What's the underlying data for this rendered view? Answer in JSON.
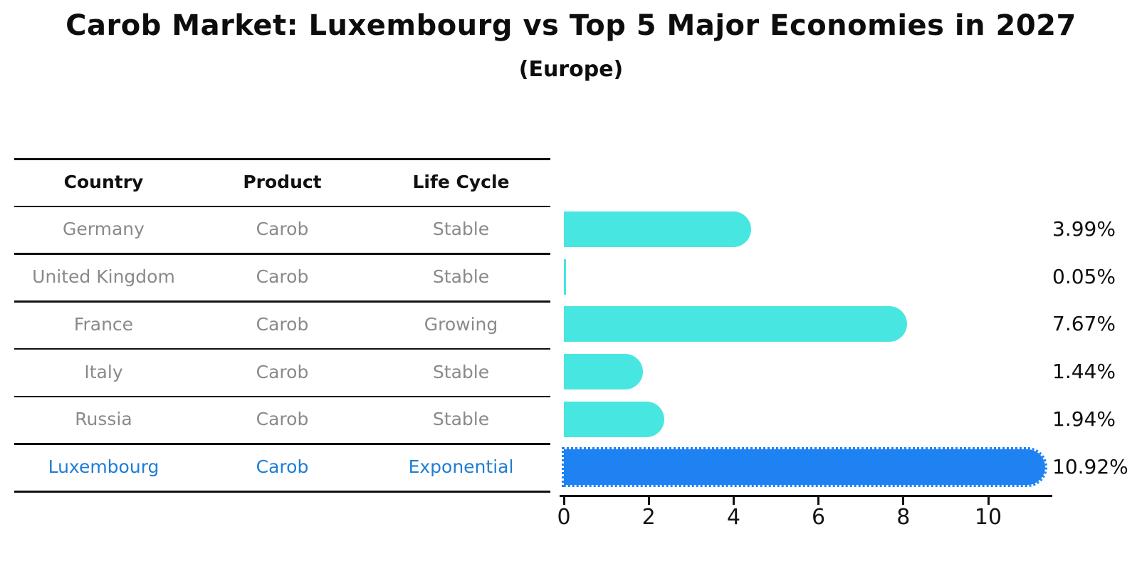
{
  "header": {
    "title": "Carob Market: Luxembourg vs Top 5 Major Economies in 2027",
    "subtitle": "(Europe)"
  },
  "table": {
    "columns": [
      "Country",
      "Product",
      "Life Cycle"
    ],
    "rows": [
      {
        "country": "Germany",
        "product": "Carob",
        "life_cycle": "Stable",
        "highlight": false
      },
      {
        "country": "United Kingdom",
        "product": "Carob",
        "life_cycle": "Stable",
        "highlight": false
      },
      {
        "country": "France",
        "product": "Carob",
        "life_cycle": "Growing",
        "highlight": false
      },
      {
        "country": "Italy",
        "product": "Carob",
        "life_cycle": "Stable",
        "highlight": false
      },
      {
        "country": "Russia",
        "product": "Carob",
        "life_cycle": "Stable",
        "highlight": false
      },
      {
        "country": "Luxembourg",
        "product": "Carob",
        "life_cycle": "Exponential",
        "highlight": true
      }
    ]
  },
  "chart_data": {
    "type": "bar",
    "orientation": "horizontal",
    "title": "Carob Market: Luxembourg vs Top 5 Major Economies in 2027",
    "subtitle": "(Europe)",
    "categories": [
      "Germany",
      "United Kingdom",
      "France",
      "Italy",
      "Russia",
      "Luxembourg"
    ],
    "values": [
      3.99,
      0.05,
      7.67,
      1.44,
      1.94,
      10.92
    ],
    "value_labels": [
      "3.99%",
      "0.05%",
      "7.67%",
      "1.44%",
      "1.94%",
      "10.92%"
    ],
    "x_ticks": [
      0,
      2,
      4,
      6,
      8,
      10
    ],
    "xlim": [
      0,
      11.5
    ],
    "grid": false,
    "legend": false,
    "highlight_index": 5,
    "colors": {
      "bar": "#47e6e1",
      "highlight_bar": "#1e82f2",
      "highlight_text": "#1f7dd4",
      "row_text": "#8a8a8a",
      "header_text": "#111111",
      "value_text": "#0d0d0d",
      "axis": "#111111"
    }
  }
}
